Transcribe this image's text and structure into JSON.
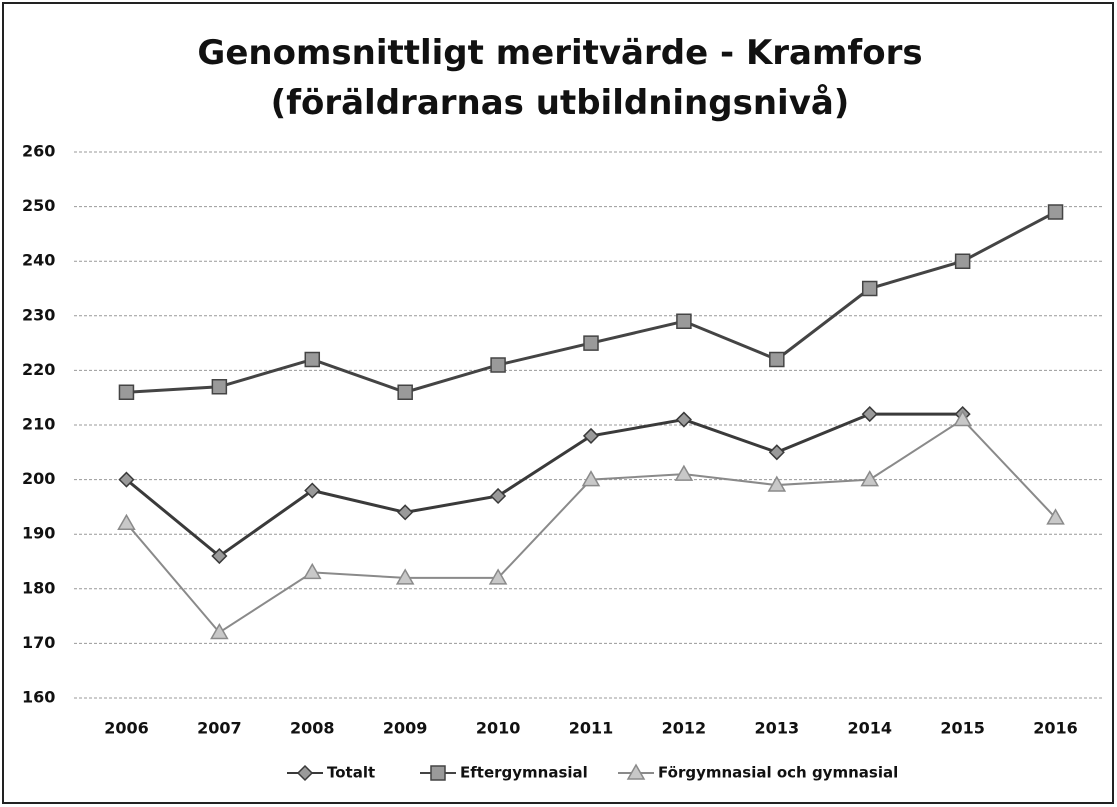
{
  "chart_data": {
    "type": "line",
    "title": "Genomsnittligt meritvärde - Kramfors (föräldrarnas utbildningsnivå)",
    "categories": [
      "2006",
      "2007",
      "2008",
      "2009",
      "2010",
      "2011",
      "2012",
      "2013",
      "2014",
      "2015",
      "2016"
    ],
    "series": [
      {
        "name": "Totalt",
        "color": "#3a3a3a",
        "marker": "diamond",
        "values": [
          200,
          186,
          198,
          194,
          197,
          208,
          211,
          205,
          212,
          212,
          null
        ]
      },
      {
        "name": "Eftergymnasial",
        "color": "#444444",
        "marker": "square",
        "values": [
          216,
          217,
          222,
          216,
          221,
          225,
          229,
          222,
          235,
          240,
          249
        ]
      },
      {
        "name": "Förgymnasial och gymnasial",
        "color": "#8a8a8a",
        "marker": "triangle",
        "values": [
          192,
          172,
          183,
          182,
          182,
          200,
          201,
          199,
          200,
          211,
          193
        ]
      }
    ],
    "ylim": [
      160,
      260
    ],
    "yticks": [
      160,
      170,
      180,
      190,
      200,
      210,
      220,
      230,
      240,
      250,
      260
    ],
    "grid": true,
    "legend": "bottom"
  }
}
